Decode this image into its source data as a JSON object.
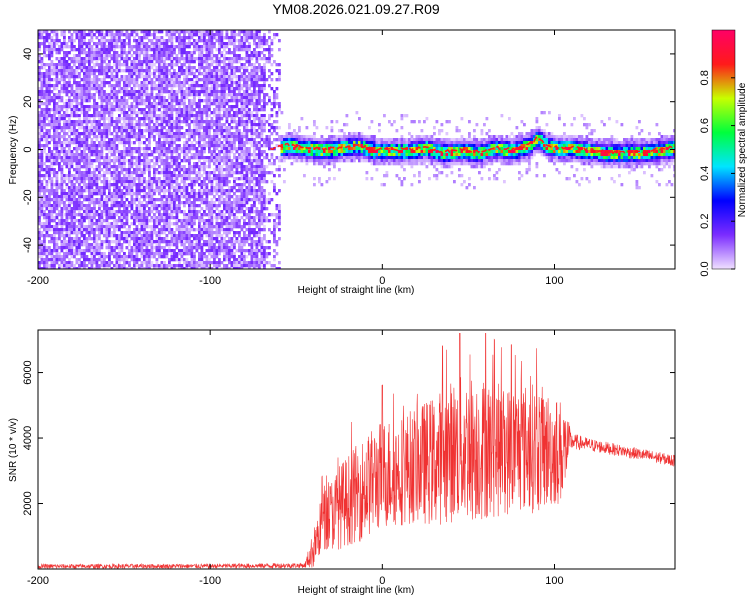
{
  "figure": {
    "title": "YM08.2026.021.09.27.R09"
  },
  "chart_data": [
    {
      "type": "heatmap",
      "xlabel": "Height of straight line (km)",
      "ylabel": "Frequency (Hz)",
      "xlim": [
        -200,
        170
      ],
      "ylim": [
        -50,
        50
      ],
      "xticks": [
        -200,
        -100,
        0,
        100
      ],
      "yticks": [
        -40,
        -20,
        0,
        20,
        40
      ],
      "grid": false,
      "noise_region": {
        "x": [
          -200,
          -60
        ],
        "description_level": 0.12
      },
      "signal_start_x": -65,
      "ridge": {
        "x": [
          -65,
          -55,
          -45,
          -35,
          -25,
          -15,
          -5,
          5,
          15,
          25,
          35,
          45,
          55,
          65,
          75,
          85,
          90,
          95,
          100,
          110,
          120,
          130,
          140,
          150,
          160,
          170
        ],
        "y": [
          0,
          2,
          1,
          0,
          1,
          2,
          0,
          0,
          0,
          1,
          -1,
          0,
          -1,
          1,
          0,
          2,
          5,
          2,
          1,
          1,
          0,
          -1,
          -1,
          -1,
          0,
          1
        ]
      },
      "colorbar": {
        "label": "Normalized spectral amplitude",
        "range": [
          0,
          1
        ],
        "ticks": [
          0.0,
          0.2,
          0.4,
          0.6,
          0.8
        ],
        "colors": [
          "#f0e0ff",
          "#7b2cff",
          "#0000ff",
          "#00e5ff",
          "#00ff3c",
          "#c8ff00",
          "#ff1a1a",
          "#ff0066"
        ]
      }
    },
    {
      "type": "line",
      "xlabel": "Height of straight line (km)",
      "ylabel": "SNR (10 * v/v)",
      "xlim": [
        -200,
        170
      ],
      "ylim": [
        0,
        7300
      ],
      "xticks": [
        -200,
        -100,
        0,
        100
      ],
      "yticks": [
        2000,
        4000,
        6000
      ],
      "grid": false,
      "color": "#f03232",
      "envelope": {
        "x": [
          -200,
          -100,
          -45,
          -40,
          -35,
          -25,
          -10,
          0,
          10,
          20,
          30,
          40,
          50,
          60,
          70,
          80,
          90,
          100,
          105,
          110,
          120,
          140,
          160,
          170
        ],
        "center": [
          80,
          90,
          110,
          600,
          1400,
          1900,
          2500,
          2900,
          3000,
          3200,
          3300,
          3600,
          3700,
          3700,
          3600,
          3700,
          3700,
          3600,
          3600,
          3900,
          3800,
          3600,
          3400,
          3300
        ],
        "spread": [
          70,
          70,
          80,
          600,
          900,
          1300,
          1600,
          1700,
          1700,
          1800,
          2000,
          2200,
          2300,
          2200,
          2000,
          2000,
          2000,
          1700,
          1600,
          250,
          200,
          180,
          180,
          180
        ],
        "peaks": [
          -35,
          0,
          35,
          45,
          60,
          65,
          75
        ]
      }
    }
  ]
}
